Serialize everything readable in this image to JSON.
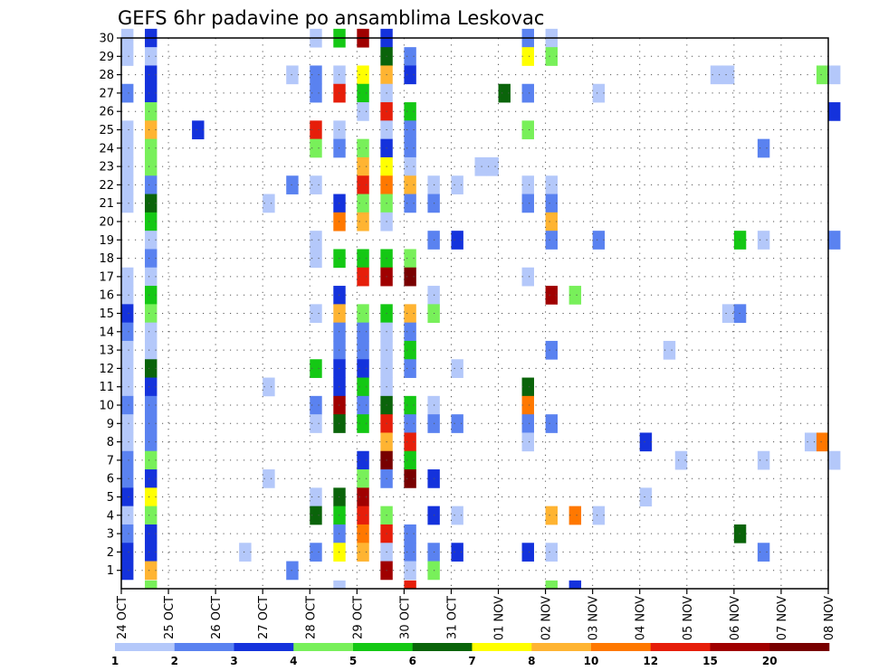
{
  "chart_data": {
    "type": "heatmap",
    "title": "GEFS 6hr padavine po ansamblima Leskovac",
    "xlabel": "",
    "ylabel": "",
    "x_tick_labels": [
      "24 OCT",
      "25 OCT",
      "26 OCT",
      "27 OCT",
      "28 OCT",
      "29 OCT",
      "30 OCT",
      "31 OCT",
      "01 NOV",
      "02 NOV",
      "03 NOV",
      "04 NOV",
      "05 NOV",
      "06 NOV",
      "07 NOV",
      "08 NOV"
    ],
    "y_tick_labels": [
      "1",
      "2",
      "3",
      "4",
      "5",
      "6",
      "7",
      "8",
      "9",
      "10",
      "11",
      "12",
      "13",
      "14",
      "15",
      "16",
      "17",
      "18",
      "19",
      "20",
      "21",
      "22",
      "23",
      "24",
      "25",
      "26",
      "27",
      "28",
      "29",
      "30"
    ],
    "x_steps_per_day": 4,
    "x_range_days": 15,
    "y_range": [
      1,
      30
    ],
    "grid": true,
    "legend": {
      "position": "bottom",
      "labels": [
        "1",
        "2",
        "3",
        "4",
        "5",
        "6",
        "7",
        "8",
        "10",
        "12",
        "15",
        "20"
      ],
      "colors": [
        "#b4c8fa",
        "#5a82f0",
        "#1432dc",
        "#78f05a",
        "#14c814",
        "#0a640a",
        "#ffff00",
        "#ffb432",
        "#ff7800",
        "#e61e0a",
        "#a00000",
        "#780000"
      ]
    },
    "cells": [
      [
        30,
        0,
        1
      ],
      [
        30,
        0.5,
        3
      ],
      [
        30,
        4,
        1
      ],
      [
        30,
        4.5,
        5
      ],
      [
        30,
        5,
        11
      ],
      [
        30,
        5.5,
        3
      ],
      [
        30,
        8.5,
        2
      ],
      [
        30,
        9,
        1
      ],
      [
        29,
        0,
        1
      ],
      [
        29,
        0.5,
        1
      ],
      [
        29,
        5.5,
        6
      ],
      [
        29,
        6,
        2
      ],
      [
        29,
        8.5,
        7
      ],
      [
        29,
        9,
        4
      ],
      [
        28,
        0.5,
        3
      ],
      [
        28,
        3.5,
        1
      ],
      [
        28,
        4,
        2
      ],
      [
        28,
        4.5,
        1
      ],
      [
        28,
        5,
        7
      ],
      [
        28,
        5.5,
        8
      ],
      [
        28,
        6,
        3
      ],
      [
        28,
        12.5,
        1
      ],
      [
        28,
        12.75,
        1
      ],
      [
        28,
        14.75,
        4
      ],
      [
        28,
        15,
        1
      ],
      [
        27,
        0,
        2
      ],
      [
        27,
        0.5,
        3
      ],
      [
        27,
        4,
        2
      ],
      [
        27,
        4.5,
        10
      ],
      [
        27,
        5,
        5
      ],
      [
        27,
        5.5,
        1
      ],
      [
        27,
        8,
        6
      ],
      [
        27,
        8.5,
        2
      ],
      [
        27,
        10,
        1
      ],
      [
        26,
        0.5,
        4
      ],
      [
        26,
        5,
        1
      ],
      [
        26,
        5.5,
        10
      ],
      [
        26,
        6,
        5
      ],
      [
        26,
        15,
        3
      ],
      [
        25,
        0,
        1
      ],
      [
        25,
        0.5,
        8
      ],
      [
        25,
        1.5,
        3
      ],
      [
        25,
        4,
        10
      ],
      [
        25,
        4.5,
        1
      ],
      [
        25,
        5.5,
        1
      ],
      [
        25,
        6,
        2
      ],
      [
        25,
        8.5,
        4
      ],
      [
        24,
        0,
        1
      ],
      [
        24,
        0.5,
        4
      ],
      [
        24,
        4,
        4
      ],
      [
        24,
        4.5,
        2
      ],
      [
        24,
        5,
        4
      ],
      [
        24,
        5.5,
        3
      ],
      [
        24,
        6,
        2
      ],
      [
        24,
        13.5,
        2
      ],
      [
        23,
        0,
        1
      ],
      [
        23,
        0.5,
        4
      ],
      [
        23,
        5,
        8
      ],
      [
        23,
        5.5,
        7
      ],
      [
        23,
        6,
        1
      ],
      [
        23,
        7.5,
        1
      ],
      [
        23,
        7.75,
        1
      ],
      [
        22,
        0,
        1
      ],
      [
        22,
        0.5,
        2
      ],
      [
        22,
        3.5,
        2
      ],
      [
        22,
        4,
        1
      ],
      [
        22,
        5,
        10
      ],
      [
        22,
        5.5,
        9
      ],
      [
        22,
        6,
        8
      ],
      [
        22,
        6.5,
        1
      ],
      [
        22,
        7,
        1
      ],
      [
        22,
        8.5,
        1
      ],
      [
        22,
        9,
        1
      ],
      [
        21,
        0,
        1
      ],
      [
        21,
        0.5,
        6
      ],
      [
        21,
        3,
        1
      ],
      [
        21,
        4.5,
        3
      ],
      [
        21,
        5,
        4
      ],
      [
        21,
        5.5,
        4
      ],
      [
        21,
        6,
        2
      ],
      [
        21,
        6.5,
        2
      ],
      [
        21,
        8.5,
        2
      ],
      [
        21,
        9,
        2
      ],
      [
        20,
        0.5,
        5
      ],
      [
        20,
        4.5,
        9
      ],
      [
        20,
        5,
        8
      ],
      [
        20,
        5.5,
        1
      ],
      [
        20,
        9,
        8
      ],
      [
        19,
        0.5,
        1
      ],
      [
        19,
        4,
        1
      ],
      [
        19,
        6.5,
        2
      ],
      [
        19,
        7,
        3
      ],
      [
        19,
        9,
        2
      ],
      [
        19,
        10,
        2
      ],
      [
        19,
        13,
        5
      ],
      [
        19,
        13.5,
        1
      ],
      [
        19,
        15,
        2
      ],
      [
        18,
        0.5,
        2
      ],
      [
        18,
        4,
        1
      ],
      [
        18,
        4.5,
        5
      ],
      [
        18,
        5,
        5
      ],
      [
        18,
        5.5,
        5
      ],
      [
        18,
        6,
        4
      ],
      [
        17,
        0,
        1
      ],
      [
        17,
        0.5,
        1
      ],
      [
        17,
        5,
        10
      ],
      [
        17,
        5.5,
        11
      ],
      [
        17,
        6,
        12
      ],
      [
        17,
        8.5,
        1
      ],
      [
        16,
        0,
        1
      ],
      [
        16,
        0.5,
        5
      ],
      [
        16,
        4.5,
        3
      ],
      [
        16,
        6.5,
        1
      ],
      [
        16,
        9,
        11
      ],
      [
        16,
        9.5,
        4
      ],
      [
        15,
        0,
        3
      ],
      [
        15,
        0.5,
        4
      ],
      [
        15,
        4,
        1
      ],
      [
        15,
        4.5,
        8
      ],
      [
        15,
        5,
        4
      ],
      [
        15,
        5.5,
        5
      ],
      [
        15,
        6,
        8
      ],
      [
        15,
        6.5,
        4
      ],
      [
        15,
        12.75,
        1
      ],
      [
        15,
        13,
        2
      ],
      [
        14,
        0,
        2
      ],
      [
        14,
        0.5,
        1
      ],
      [
        14,
        4.5,
        2
      ],
      [
        14,
        5,
        2
      ],
      [
        14,
        5.5,
        1
      ],
      [
        14,
        6,
        2
      ],
      [
        13,
        0,
        1
      ],
      [
        13,
        0.5,
        1
      ],
      [
        13,
        4.5,
        2
      ],
      [
        13,
        5,
        2
      ],
      [
        13,
        5.5,
        1
      ],
      [
        13,
        6,
        5
      ],
      [
        13,
        9,
        2
      ],
      [
        13,
        11.5,
        1
      ],
      [
        12,
        0,
        1
      ],
      [
        12,
        0.5,
        6
      ],
      [
        12,
        4,
        5
      ],
      [
        12,
        4.5,
        3
      ],
      [
        12,
        5,
        3
      ],
      [
        12,
        5.5,
        1
      ],
      [
        12,
        6,
        2
      ],
      [
        12,
        7,
        1
      ],
      [
        11,
        0,
        1
      ],
      [
        11,
        0.5,
        3
      ],
      [
        11,
        3,
        1
      ],
      [
        11,
        4.5,
        3
      ],
      [
        11,
        5,
        5
      ],
      [
        11,
        5.5,
        1
      ],
      [
        11,
        8.5,
        6
      ],
      [
        10,
        0,
        2
      ],
      [
        10,
        0.5,
        2
      ],
      [
        10,
        4,
        2
      ],
      [
        10,
        4.5,
        11
      ],
      [
        10,
        5,
        2
      ],
      [
        10,
        5.5,
        6
      ],
      [
        10,
        6,
        5
      ],
      [
        10,
        6.5,
        1
      ],
      [
        10,
        8.5,
        9
      ],
      [
        9,
        0,
        1
      ],
      [
        9,
        0.5,
        2
      ],
      [
        9,
        4,
        1
      ],
      [
        9,
        4.5,
        6
      ],
      [
        9,
        5,
        5
      ],
      [
        9,
        5.5,
        10
      ],
      [
        9,
        6,
        2
      ],
      [
        9,
        6.5,
        2
      ],
      [
        9,
        7,
        2
      ],
      [
        9,
        8.5,
        2
      ],
      [
        9,
        9,
        2
      ],
      [
        8,
        0,
        1
      ],
      [
        8,
        0.5,
        2
      ],
      [
        8,
        5.5,
        8
      ],
      [
        8,
        6,
        10
      ],
      [
        8,
        8.5,
        1
      ],
      [
        8,
        11,
        3
      ],
      [
        8,
        14.5,
        1
      ],
      [
        8,
        14.75,
        9
      ],
      [
        7,
        0,
        2
      ],
      [
        7,
        0.5,
        4
      ],
      [
        7,
        5,
        3
      ],
      [
        7,
        5.5,
        12
      ],
      [
        7,
        6,
        5
      ],
      [
        7,
        11.75,
        1
      ],
      [
        7,
        13.5,
        1
      ],
      [
        7,
        15,
        1
      ],
      [
        6,
        0,
        2
      ],
      [
        6,
        0.5,
        3
      ],
      [
        6,
        3,
        1
      ],
      [
        6,
        5,
        4
      ],
      [
        6,
        5.5,
        2
      ],
      [
        6,
        6,
        12
      ],
      [
        6,
        6.5,
        3
      ],
      [
        5,
        0,
        3
      ],
      [
        5,
        0.5,
        7
      ],
      [
        5,
        4,
        1
      ],
      [
        5,
        4.5,
        6
      ],
      [
        5,
        5,
        11
      ],
      [
        5,
        11,
        1
      ],
      [
        4,
        0,
        1
      ],
      [
        4,
        0.5,
        4
      ],
      [
        4,
        4,
        6
      ],
      [
        4,
        4.5,
        5
      ],
      [
        4,
        5,
        10
      ],
      [
        4,
        5.5,
        4
      ],
      [
        4,
        6.5,
        3
      ],
      [
        4,
        7,
        1
      ],
      [
        4,
        9,
        8
      ],
      [
        4,
        9.5,
        9
      ],
      [
        4,
        10,
        1
      ],
      [
        3,
        0,
        2
      ],
      [
        3,
        0.5,
        3
      ],
      [
        3,
        4.5,
        2
      ],
      [
        3,
        5,
        9
      ],
      [
        3,
        5.5,
        10
      ],
      [
        3,
        6,
        2
      ],
      [
        3,
        13,
        6
      ],
      [
        2,
        0,
        3
      ],
      [
        2,
        0.5,
        3
      ],
      [
        2,
        2.5,
        1
      ],
      [
        2,
        4,
        2
      ],
      [
        2,
        4.5,
        7
      ],
      [
        2,
        5,
        8
      ],
      [
        2,
        5.5,
        1
      ],
      [
        2,
        6,
        2
      ],
      [
        2,
        6.5,
        2
      ],
      [
        2,
        7,
        3
      ],
      [
        2,
        8.5,
        3
      ],
      [
        2,
        9,
        1
      ],
      [
        2,
        13.5,
        2
      ],
      [
        1,
        0,
        3
      ],
      [
        1,
        0.5,
        8
      ],
      [
        1,
        3.5,
        2
      ],
      [
        1,
        5.5,
        11
      ],
      [
        1,
        6,
        1
      ],
      [
        1,
        6.5,
        4
      ],
      [
        0.5,
        0.5,
        4
      ],
      [
        0.5,
        4.5,
        1
      ],
      [
        0.5,
        6,
        10
      ],
      [
        0.5,
        9,
        4
      ],
      [
        0.5,
        9.5,
        3
      ]
    ]
  }
}
